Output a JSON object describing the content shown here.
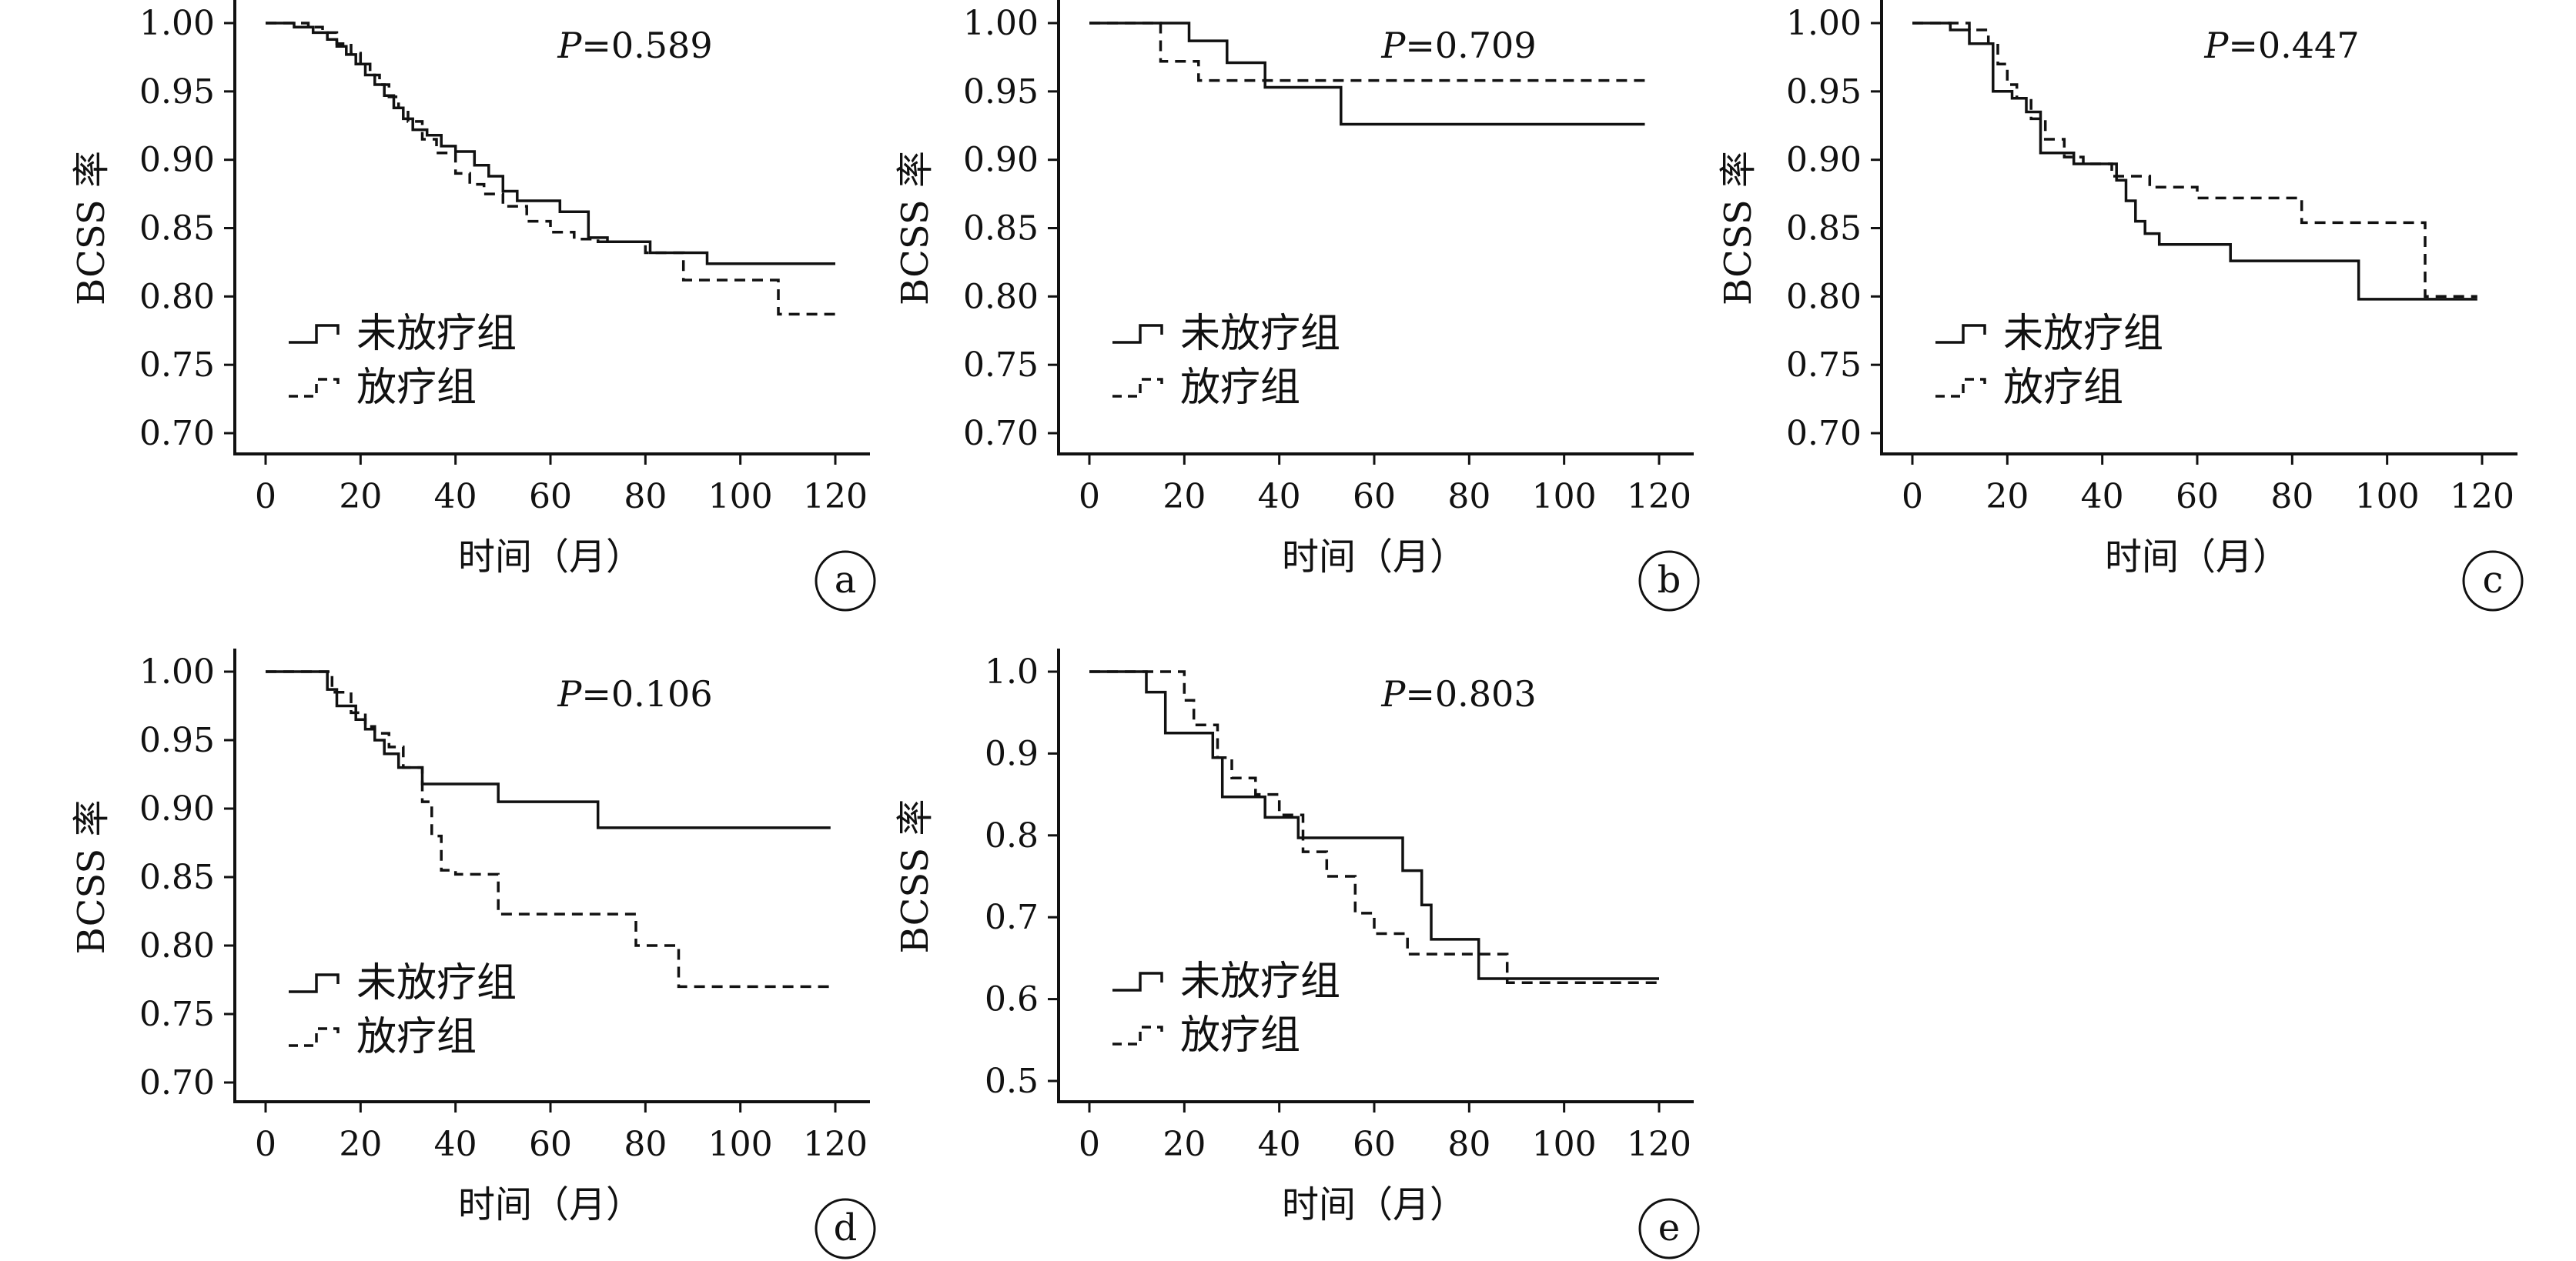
{
  "chart_data": [
    {
      "type": "line",
      "panel": "a",
      "pvalue_prefix": "P",
      "pvalue": "=0.589",
      "xlabel": "时间（月）",
      "ylabel": "BCSS 率",
      "xlim": [
        0,
        120
      ],
      "ylim": [
        0.7,
        1.0
      ],
      "xticks": [
        "0",
        "20",
        "40",
        "60",
        "80",
        "100",
        "120"
      ],
      "yticks": [
        "0.70",
        "0.75",
        "0.80",
        "0.85",
        "0.90",
        "0.95",
        "1.00"
      ],
      "legend": [
        "未放疗组",
        "放疗组"
      ],
      "series": [
        {
          "name": "未放疗组",
          "style": "solid",
          "x": [
            0,
            6,
            10,
            13,
            15,
            17,
            19,
            21,
            23,
            25,
            27,
            29,
            31,
            34,
            37,
            40,
            44,
            47,
            50,
            53,
            56,
            62,
            68,
            72,
            81,
            93,
            120
          ],
          "y": [
            1.0,
            0.997,
            0.993,
            0.988,
            0.983,
            0.977,
            0.97,
            0.962,
            0.955,
            0.947,
            0.938,
            0.93,
            0.922,
            0.918,
            0.91,
            0.906,
            0.896,
            0.888,
            0.877,
            0.87,
            0.87,
            0.862,
            0.843,
            0.84,
            0.832,
            0.824,
            0.824
          ]
        },
        {
          "name": "放疗组",
          "style": "dashed",
          "x": [
            0,
            9,
            12,
            15,
            18,
            20,
            22,
            24,
            26,
            28,
            30,
            33,
            36,
            40,
            43,
            46,
            50,
            55,
            60,
            65,
            70,
            80,
            88,
            108,
            120
          ],
          "y": [
            1.0,
            0.997,
            0.993,
            0.985,
            0.978,
            0.97,
            0.962,
            0.955,
            0.946,
            0.938,
            0.928,
            0.915,
            0.905,
            0.89,
            0.882,
            0.875,
            0.866,
            0.855,
            0.847,
            0.842,
            0.84,
            0.832,
            0.812,
            0.787,
            0.787
          ]
        }
      ]
    },
    {
      "type": "line",
      "panel": "b",
      "pvalue_prefix": "P",
      "pvalue": "=0.709",
      "xlabel": "时间（月）",
      "ylabel": "BCSS 率",
      "xlim": [
        0,
        120
      ],
      "ylim": [
        0.7,
        1.0
      ],
      "xticks": [
        "0",
        "20",
        "40",
        "60",
        "80",
        "100",
        "120"
      ],
      "yticks": [
        "0.70",
        "0.75",
        "0.80",
        "0.85",
        "0.90",
        "0.95",
        "1.00"
      ],
      "legend": [
        "未放疗组",
        "放疗组"
      ],
      "series": [
        {
          "name": "未放疗组",
          "style": "solid",
          "x": [
            0,
            21,
            29,
            37,
            53,
            117
          ],
          "y": [
            1.0,
            0.987,
            0.971,
            0.953,
            0.926,
            0.926
          ]
        },
        {
          "name": "放疗组",
          "style": "dashed",
          "x": [
            0,
            15,
            23,
            117
          ],
          "y": [
            1.0,
            0.972,
            0.958,
            0.958
          ]
        }
      ]
    },
    {
      "type": "line",
      "panel": "c",
      "pvalue_prefix": "P",
      "pvalue": "=0.447",
      "xlabel": "时间（月）",
      "ylabel": "BCSS 率",
      "xlim": [
        0,
        120
      ],
      "ylim": [
        0.7,
        1.0
      ],
      "xticks": [
        "0",
        "20",
        "40",
        "60",
        "80",
        "100",
        "120"
      ],
      "yticks": [
        "0.70",
        "0.75",
        "0.80",
        "0.85",
        "0.90",
        "0.95",
        "1.00"
      ],
      "legend": [
        "未放疗组",
        "放疗组"
      ],
      "series": [
        {
          "name": "未放疗组",
          "style": "solid",
          "x": [
            0,
            8,
            12,
            17,
            21,
            24,
            27,
            34,
            43,
            45,
            47,
            49,
            52,
            67,
            94,
            119
          ],
          "y": [
            1.0,
            0.995,
            0.985,
            0.95,
            0.945,
            0.935,
            0.905,
            0.897,
            0.885,
            0.87,
            0.855,
            0.846,
            0.838,
            0.826,
            0.798,
            0.798
          ]
        },
        {
          "name": "放疗组",
          "style": "dashed",
          "x": [
            0,
            12,
            16,
            18,
            20,
            22,
            25,
            28,
            32,
            36,
            42,
            50,
            60,
            70,
            82,
            108,
            119
          ],
          "y": [
            1.0,
            0.995,
            0.985,
            0.97,
            0.955,
            0.945,
            0.93,
            0.915,
            0.902,
            0.897,
            0.888,
            0.88,
            0.872,
            0.872,
            0.854,
            0.8,
            0.8
          ]
        }
      ]
    },
    {
      "type": "line",
      "panel": "d",
      "pvalue_prefix": "P",
      "pvalue": "=0.106",
      "xlabel": "时间（月）",
      "ylabel": "BCSS 率",
      "xlim": [
        0,
        120
      ],
      "ylim": [
        0.7,
        1.0
      ],
      "xticks": [
        "0",
        "20",
        "40",
        "60",
        "80",
        "100",
        "120"
      ],
      "yticks": [
        "0.70",
        "0.75",
        "0.80",
        "0.85",
        "0.90",
        "0.95",
        "1.00"
      ],
      "legend": [
        "未放疗组",
        "放疗组"
      ],
      "series": [
        {
          "name": "未放疗组",
          "style": "solid",
          "x": [
            0,
            13,
            15,
            19,
            21,
            23,
            25,
            28,
            33,
            40,
            49,
            70,
            119
          ],
          "y": [
            1.0,
            0.987,
            0.975,
            0.965,
            0.958,
            0.95,
            0.94,
            0.93,
            0.918,
            0.918,
            0.905,
            0.886,
            0.886
          ]
        },
        {
          "name": "放疗组",
          "style": "dashed",
          "x": [
            0,
            14,
            18,
            21,
            23,
            26,
            29,
            33,
            35,
            37,
            40,
            49,
            78,
            87,
            119
          ],
          "y": [
            1.0,
            0.985,
            0.97,
            0.96,
            0.955,
            0.945,
            0.93,
            0.905,
            0.88,
            0.855,
            0.852,
            0.823,
            0.8,
            0.77,
            0.77
          ]
        }
      ]
    },
    {
      "type": "line",
      "panel": "e",
      "pvalue_prefix": "P",
      "pvalue": "=0.803",
      "xlabel": "时间（月）",
      "ylabel": "BCSS 率",
      "xlim": [
        0,
        120
      ],
      "ylim": [
        0.5,
        1.0
      ],
      "xticks": [
        "0",
        "20",
        "40",
        "60",
        "80",
        "100",
        "120"
      ],
      "yticks": [
        "0.5",
        "0.6",
        "0.7",
        "0.8",
        "0.9",
        "1.0"
      ],
      "legend": [
        "未放疗组",
        "放疗组"
      ],
      "series": [
        {
          "name": "未放疗组",
          "style": "solid",
          "x": [
            0,
            12,
            16,
            26,
            28,
            37,
            44,
            66,
            70,
            72,
            82,
            120
          ],
          "y": [
            1.0,
            0.975,
            0.925,
            0.895,
            0.847,
            0.822,
            0.797,
            0.757,
            0.715,
            0.673,
            0.625,
            0.625
          ]
        },
        {
          "name": "放疗组",
          "style": "dashed",
          "x": [
            0,
            20,
            22,
            27,
            30,
            35,
            40,
            45,
            50,
            56,
            60,
            67,
            76,
            88,
            120
          ],
          "y": [
            1.0,
            0.965,
            0.935,
            0.895,
            0.87,
            0.85,
            0.825,
            0.78,
            0.75,
            0.705,
            0.68,
            0.655,
            0.655,
            0.62,
            0.62
          ]
        }
      ]
    }
  ]
}
